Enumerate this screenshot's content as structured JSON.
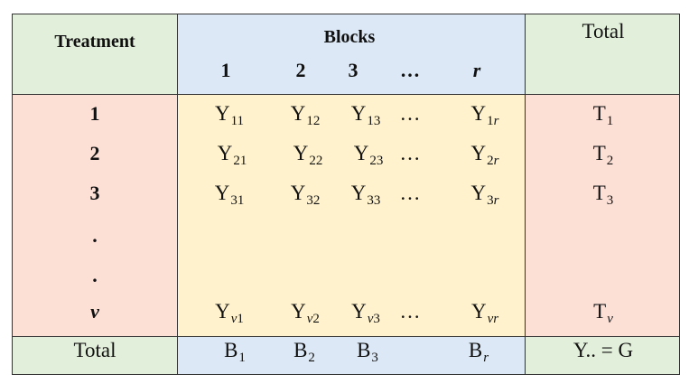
{
  "header": {
    "treatment": "Treatment",
    "blocks": "Blocks",
    "total": "Total",
    "block_numbers": [
      "1",
      "2",
      "3",
      "…",
      "r"
    ]
  },
  "rows": [
    {
      "label": "1",
      "cells": [
        {
          "b": "Y",
          "s": "11"
        },
        {
          "b": "Y",
          "s": "12"
        },
        {
          "b": "Y",
          "s": "13"
        },
        {
          "b": "…",
          "s": ""
        },
        {
          "b": "Y",
          "s": "1",
          "si": "r"
        }
      ],
      "total": {
        "b": "T",
        "s": "1"
      }
    },
    {
      "label": "2",
      "cells": [
        {
          "b": "Y",
          "s": "21"
        },
        {
          "b": "Y",
          "s": "22"
        },
        {
          "b": "Y",
          "s": "23"
        },
        {
          "b": "…",
          "s": ""
        },
        {
          "b": "Y",
          "s": "2",
          "si": "r"
        }
      ],
      "total": {
        "b": "T",
        "s": "2"
      }
    },
    {
      "label": "3",
      "cells": [
        {
          "b": "Y",
          "s": "31"
        },
        {
          "b": "Y",
          "s": "32"
        },
        {
          "b": "Y",
          "s": "33"
        },
        {
          "b": "…",
          "s": ""
        },
        {
          "b": "Y",
          "s": "3",
          "si": "r"
        }
      ],
      "total": {
        "b": "T",
        "s": "3"
      }
    },
    {
      "label": ".",
      "cells": [],
      "total": null
    },
    {
      "label": ".",
      "cells": [],
      "total": null
    },
    {
      "label": "v",
      "cells": [
        {
          "b": "Y",
          "si": "v",
          "s": "1"
        },
        {
          "b": "Y",
          "si": "v",
          "s": "2"
        },
        {
          "b": "Y",
          "si": "v",
          "s": "3"
        },
        {
          "b": "…",
          "s": ""
        },
        {
          "b": "Y",
          "si": "vr",
          "s": ""
        }
      ],
      "total": {
        "b": "T",
        "si": "v",
        "s": ""
      }
    }
  ],
  "footer": {
    "label": "Total",
    "block_totals": [
      {
        "b": "B",
        "s": "1"
      },
      {
        "b": "B",
        "s": "2"
      },
      {
        "b": "B",
        "s": "3"
      },
      {
        "b": "B",
        "si": "r",
        "s": ""
      }
    ],
    "grand_total": "Y.. = G"
  },
  "colors": {
    "green": "#e2efda",
    "blue": "#dce8f5",
    "pink": "#fce0d6",
    "yellow": "#fff2cc"
  }
}
